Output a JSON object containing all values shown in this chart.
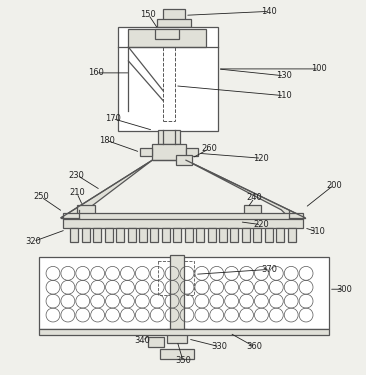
{
  "bg_color": "#f0f0eb",
  "line_color": "#555555",
  "fill_light": "#e0e0d8",
  "fill_white": "#ffffff",
  "label_color": "#222222",
  "label_fs": 6.0
}
